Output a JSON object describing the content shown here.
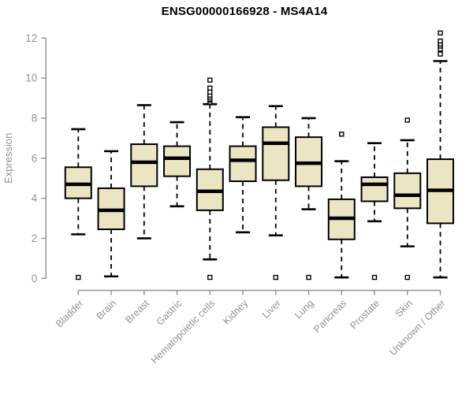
{
  "header": {
    "title": "ENSG00000166928 - MS4A14"
  },
  "chart_data": {
    "type": "boxplot",
    "title": "ENSG00000166928 - MS4A14",
    "xlabel": "",
    "ylabel": "Expression",
    "ylim": [
      0,
      12
    ],
    "yticks": [
      0,
      2,
      4,
      6,
      8,
      10,
      12
    ],
    "grid": false,
    "legend": false,
    "outlier_marker": "open-square",
    "categories": [
      "Bladder",
      "Brain",
      "Breast",
      "Gastric",
      "Hematopoietic cells",
      "Kidney",
      "Liver",
      "Lung",
      "Pancreas",
      "Prostate",
      "Skin",
      "Unknown / Other"
    ],
    "series": [
      {
        "name": "Bladder",
        "whisker_low": 2.2,
        "q1": 4.0,
        "median": 4.7,
        "q3": 5.55,
        "whisker_high": 7.45,
        "outliers": [
          0.05
        ]
      },
      {
        "name": "Brain",
        "whisker_low": 0.1,
        "q1": 2.45,
        "median": 3.4,
        "q3": 4.5,
        "whisker_high": 6.35,
        "outliers": []
      },
      {
        "name": "Breast",
        "whisker_low": 2.0,
        "q1": 4.6,
        "median": 5.8,
        "q3": 6.7,
        "whisker_high": 8.65,
        "outliers": []
      },
      {
        "name": "Gastric",
        "whisker_low": 3.6,
        "q1": 5.1,
        "median": 6.0,
        "q3": 6.6,
        "whisker_high": 7.8,
        "outliers": []
      },
      {
        "name": "Hematopoietic cells",
        "whisker_low": 0.95,
        "q1": 3.4,
        "median": 4.35,
        "q3": 5.45,
        "whisker_high": 8.7,
        "outliers": [
          0.05,
          8.8,
          8.9,
          8.95,
          9.05,
          9.15,
          9.3,
          9.5,
          9.9
        ]
      },
      {
        "name": "Kidney",
        "whisker_low": 2.3,
        "q1": 4.85,
        "median": 5.9,
        "q3": 6.6,
        "whisker_high": 8.05,
        "outliers": []
      },
      {
        "name": "Liver",
        "whisker_low": 2.15,
        "q1": 4.9,
        "median": 6.75,
        "q3": 7.55,
        "whisker_high": 8.6,
        "outliers": [
          0.05
        ]
      },
      {
        "name": "Lung",
        "whisker_low": 3.45,
        "q1": 4.6,
        "median": 5.75,
        "q3": 7.05,
        "whisker_high": 8.0,
        "outliers": [
          0.05
        ]
      },
      {
        "name": "Pancreas",
        "whisker_low": 0.05,
        "q1": 1.95,
        "median": 3.0,
        "q3": 3.95,
        "whisker_high": 5.85,
        "outliers": [
          7.2
        ]
      },
      {
        "name": "Prostate",
        "whisker_low": 2.85,
        "q1": 3.85,
        "median": 4.7,
        "q3": 5.05,
        "whisker_high": 6.75,
        "outliers": [
          0.05
        ]
      },
      {
        "name": "Skin",
        "whisker_low": 1.6,
        "q1": 3.5,
        "median": 4.15,
        "q3": 5.25,
        "whisker_high": 6.9,
        "outliers": [
          0.05,
          7.9
        ]
      },
      {
        "name": "Unknown / Other",
        "whisker_low": 0.05,
        "q1": 2.75,
        "median": 4.4,
        "q3": 5.95,
        "whisker_high": 10.85,
        "outliers": [
          11.2,
          11.45,
          11.6,
          11.7,
          11.85,
          12.25
        ]
      }
    ],
    "colors": {
      "box_fill": "#ece5c3",
      "box_stroke": "#000000",
      "median": "#000000",
      "whisker": "#000000",
      "axis": "#909090",
      "tick_label": "#919191",
      "axis_label": "#919191",
      "title": "#000000",
      "background": "#ffffff"
    }
  }
}
